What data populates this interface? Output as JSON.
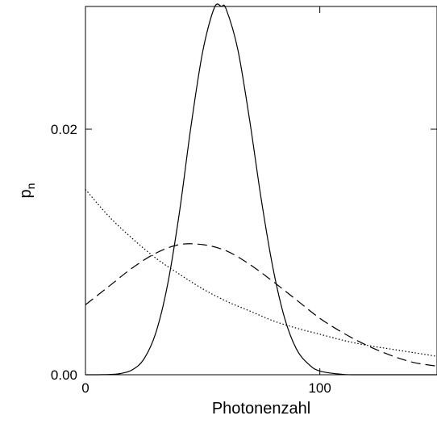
{
  "chart_data": {
    "type": "line",
    "xlabel": "Photonenzahl",
    "ylabel": "p",
    "ylabel_subscript": "n",
    "xlim": [
      0,
      150
    ],
    "ylim": [
      0,
      0.03
    ],
    "xticks": [
      {
        "value": 0,
        "label": "0"
      },
      {
        "value": 100,
        "label": "100"
      }
    ],
    "yticks": [
      {
        "value": 0,
        "label": "0.00"
      },
      {
        "value": 0.02,
        "label": "0.02"
      }
    ],
    "grid": false,
    "series": [
      {
        "style": "solid",
        "x": [
          0,
          10,
          15,
          20,
          25,
          30,
          35,
          40,
          45,
          50,
          55,
          58,
          60,
          65,
          70,
          75,
          80,
          85,
          90,
          95,
          100,
          110,
          120,
          150
        ],
        "y": [
          0,
          2e-05,
          0.0001,
          0.0004,
          0.0013,
          0.0034,
          0.0073,
          0.0131,
          0.0202,
          0.0263,
          0.0299,
          0.0302,
          0.0298,
          0.0265,
          0.0208,
          0.0143,
          0.0087,
          0.0046,
          0.0021,
          0.0009,
          0.0003,
          3e-05,
          0,
          0
        ]
      },
      {
        "style": "dashed",
        "x": [
          0,
          10,
          20,
          30,
          40,
          50,
          60,
          70,
          80,
          90,
          100,
          110,
          120,
          130,
          140,
          150
        ],
        "y": [
          0.0057,
          0.0072,
          0.0087,
          0.0099,
          0.0106,
          0.0106,
          0.0101,
          0.009,
          0.0076,
          0.0061,
          0.0046,
          0.0034,
          0.0024,
          0.0016,
          0.001,
          0.0007
        ]
      },
      {
        "style": "dotted",
        "x": [
          0,
          10,
          20,
          30,
          40,
          50,
          60,
          70,
          80,
          90,
          100,
          110,
          120,
          130,
          140,
          150
        ],
        "y": [
          0.0151,
          0.0129,
          0.0111,
          0.0095,
          0.0082,
          0.007,
          0.006,
          0.0052,
          0.0044,
          0.0038,
          0.0033,
          0.0028,
          0.0024,
          0.0021,
          0.0018,
          0.0015
        ]
      }
    ]
  }
}
